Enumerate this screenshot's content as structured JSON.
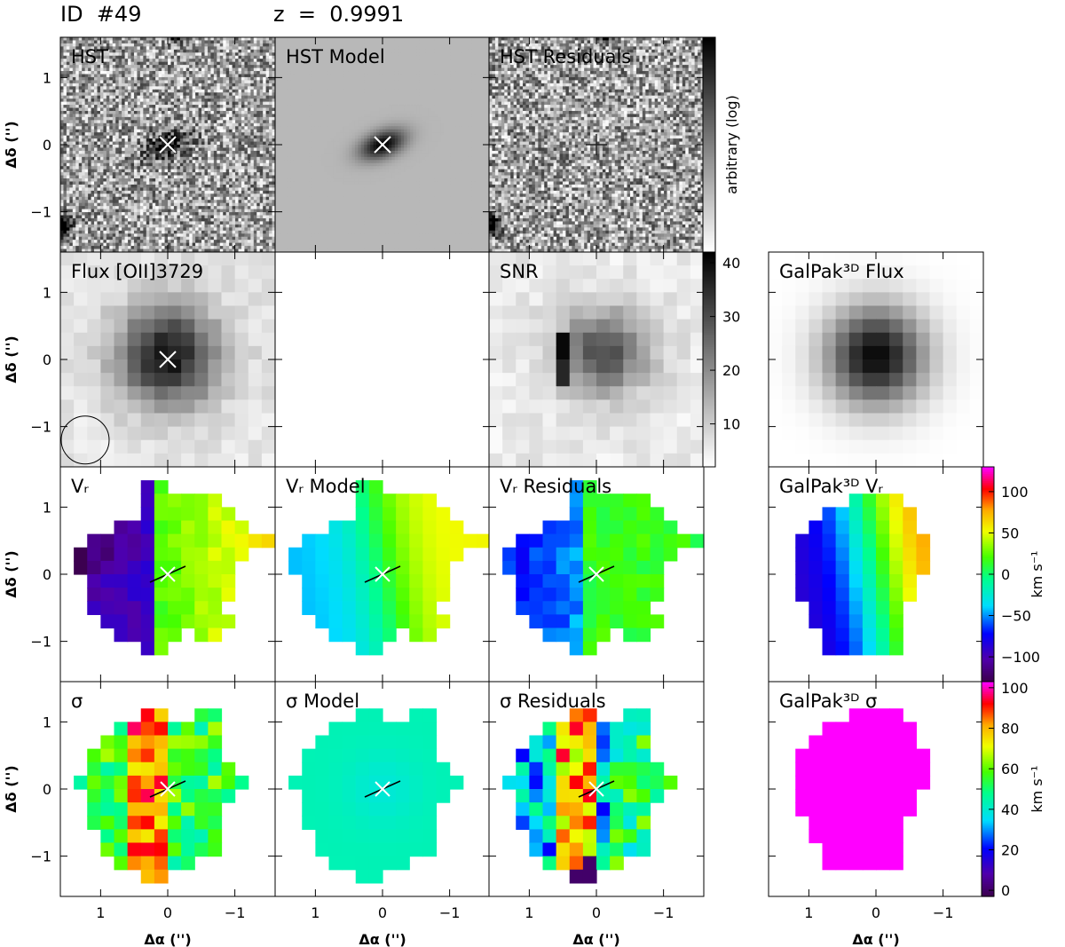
{
  "header": {
    "object_id": "ID  #49",
    "redshift": "z  =  0.9991"
  },
  "chart_data": {
    "type": "heatmap",
    "ylabel": "Δδ ('')",
    "xlabel": "Δα ('')",
    "xlim": [
      1.6,
      -1.6
    ],
    "ylim": [
      -1.6,
      1.6
    ],
    "xticks": [
      1,
      0,
      -1
    ],
    "yticks": [
      1,
      0,
      -1
    ],
    "xtick_labels": [
      "1",
      "0",
      "−1"
    ],
    "ytick_labels": [
      "1",
      "0",
      "−1"
    ],
    "panels": [
      {
        "key": "hst",
        "title": "HST",
        "content": "hst-noise"
      },
      {
        "key": "hst_model",
        "title": "HST  Model",
        "content": "hst-model"
      },
      {
        "key": "hst_res",
        "title": "HST  Residuals",
        "content": "hst-res"
      },
      {
        "key": "flux",
        "title": "Flux  [OII]3729",
        "content": "flux"
      },
      {
        "key": "blank",
        "title": "",
        "content": "blank"
      },
      {
        "key": "snr",
        "title": "SNR",
        "content": "snr"
      },
      {
        "key": "galpak_flux",
        "title": "GalPak³ᴰ  Flux",
        "content": "gp-flux"
      },
      {
        "key": "vr",
        "title": "Vᵣ",
        "content": "vr"
      },
      {
        "key": "vr_model",
        "title": "Vᵣ  Model",
        "content": "vr-model"
      },
      {
        "key": "vr_res",
        "title": "Vᵣ  Residuals",
        "content": "vr-res"
      },
      {
        "key": "galpak_vr",
        "title": "GalPak³ᴰ  Vᵣ",
        "content": "gp-vr"
      },
      {
        "key": "sigma",
        "title": "σ",
        "content": "sigma"
      },
      {
        "key": "sigma_model",
        "title": "σ  Model",
        "content": "sigma-model"
      },
      {
        "key": "sigma_res",
        "title": "σ  Residuals",
        "content": "sigma-res"
      },
      {
        "key": "galpak_sigma",
        "title": "GalPak³ᴰ  σ",
        "content": "gp-sigma"
      }
    ],
    "colorbars": [
      {
        "key": "hst",
        "label": "arbitrary  (log)",
        "colormap": "gray-reversed",
        "ticks": [],
        "tick_labels": []
      },
      {
        "key": "snr",
        "label": "",
        "colormap": "gray-reversed",
        "range": [
          2,
          42
        ],
        "ticks": [
          10,
          20,
          30,
          40
        ],
        "tick_labels": [
          "10",
          "20",
          "30",
          "40"
        ]
      },
      {
        "key": "vr",
        "label": "km s⁻¹",
        "colormap": "rainbow",
        "range": [
          -130,
          130
        ],
        "ticks": [
          -100,
          -50,
          0,
          50,
          100
        ],
        "tick_labels": [
          "−100",
          "−50",
          "0",
          "50",
          "100"
        ]
      },
      {
        "key": "sigma",
        "label": "km s⁻¹",
        "colormap": "rainbow",
        "range": [
          -3,
          103
        ],
        "ticks": [
          0,
          20,
          40,
          60,
          80,
          100
        ],
        "tick_labels": [
          "0",
          "20",
          "40",
          "60",
          "80",
          "100"
        ]
      }
    ],
    "galaxy_center": [
      0,
      0
    ],
    "psf_circle_center": [
      1.23,
      -1.2
    ],
    "grid": false
  }
}
